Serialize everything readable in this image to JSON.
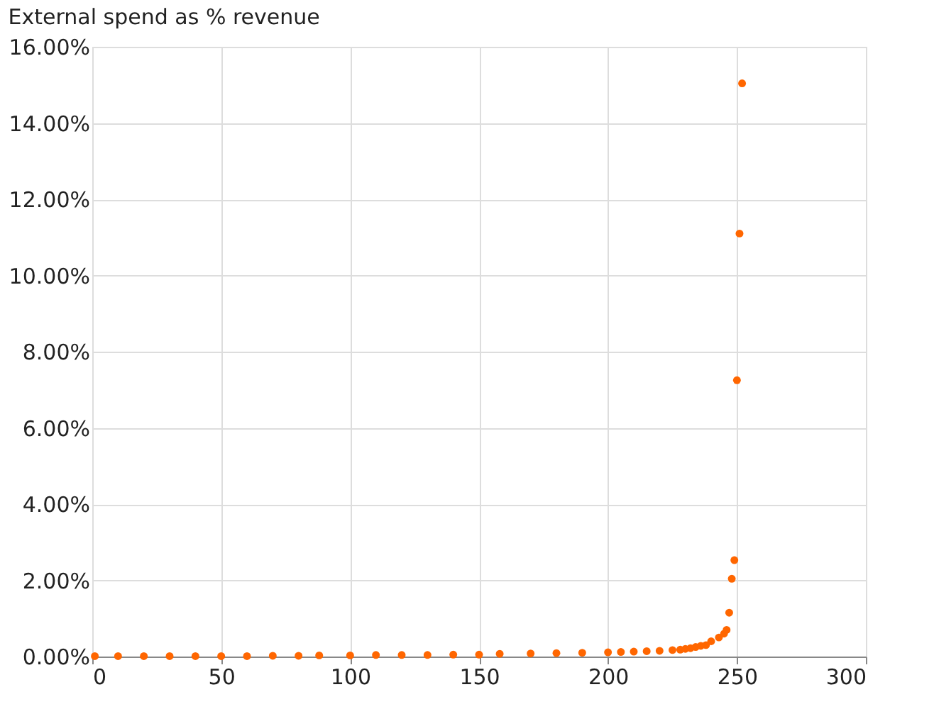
{
  "chart_data": {
    "type": "scatter",
    "title": "External spend as % revenue",
    "x": [
      1,
      10,
      20,
      30,
      40,
      50,
      60,
      70,
      80,
      88,
      100,
      110,
      120,
      130,
      140,
      150,
      158,
      170,
      180,
      190,
      200,
      205,
      210,
      215,
      220,
      225,
      228,
      230,
      232,
      234,
      236,
      238,
      240,
      243,
      245,
      246,
      247,
      248,
      249,
      250,
      251,
      252
    ],
    "series": [
      {
        "color": "#ff6600",
        "values": [
          0.01,
          0.01,
          0.01,
          0.01,
          0.01,
          0.01,
          0.01,
          0.02,
          0.02,
          0.03,
          0.03,
          0.04,
          0.04,
          0.04,
          0.05,
          0.05,
          0.07,
          0.08,
          0.09,
          0.1,
          0.11,
          0.12,
          0.13,
          0.14,
          0.15,
          0.17,
          0.18,
          0.2,
          0.22,
          0.25,
          0.28,
          0.3,
          0.4,
          0.5,
          0.6,
          0.7,
          1.15,
          2.04,
          2.53,
          7.25,
          11.1,
          15.04
        ]
      }
    ],
    "xlim": [
      0,
      300
    ],
    "xticks": [
      0,
      50,
      100,
      150,
      200,
      250,
      300
    ],
    "ylim": [
      0,
      16
    ],
    "yticks": [
      {
        "value": 0,
        "label": "0.00%"
      },
      {
        "value": 2,
        "label": "2.00%"
      },
      {
        "value": 4,
        "label": "4.00%"
      },
      {
        "value": 6,
        "label": "6.00%"
      },
      {
        "value": 8,
        "label": "8.00%"
      },
      {
        "value": 10,
        "label": "10.00%"
      },
      {
        "value": 12,
        "label": "12.00%"
      },
      {
        "value": 14,
        "label": "14.00%"
      },
      {
        "value": 16,
        "label": "16.00%"
      }
    ],
    "grid": true,
    "marker": "circle",
    "legend": false
  }
}
